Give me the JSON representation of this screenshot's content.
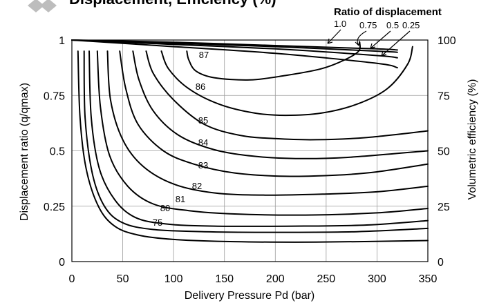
{
  "header_fragment": {
    "text": "Displacement, Efficiency (%)",
    "color": "#bdbdbd"
  },
  "chart_data": {
    "type": "line",
    "xlabel": "Delivery  Pressure Pd (bar)",
    "ylabel_left": "Displacement  ratio (q/qmax)",
    "ylabel_right": "Volumetric efficiency (%)",
    "xlim": [
      0,
      350
    ],
    "ylim_left": [
      0,
      1
    ],
    "ylim_right": [
      0,
      100
    ],
    "x_ticks": [
      "0",
      "50",
      "100",
      "150",
      "200",
      "250",
      "300",
      "350"
    ],
    "x_tick_values": [
      0,
      50,
      100,
      150,
      200,
      250,
      300,
      350
    ],
    "y_left_ticks": [
      "0",
      "0.25",
      "0.5",
      "0.75",
      "1"
    ],
    "y_left_tick_values": [
      0,
      0.25,
      0.5,
      0.75,
      1
    ],
    "y_right_ticks": [
      "0",
      "25",
      "50",
      "75",
      "100"
    ],
    "y_right_tick_values": [
      0,
      25,
      50,
      75,
      100
    ],
    "grid": true,
    "legend": {
      "title": "Ratio of displacement",
      "entries": [
        "1.0",
        "0.75",
        "0.5",
        "0.25"
      ]
    },
    "volumetric_efficiency": [
      {
        "ratio": "1.0",
        "points": [
          [
            0,
            100
          ],
          [
            100,
            99
          ],
          [
            200,
            97.5
          ],
          [
            300,
            96
          ],
          [
            320,
            95.5
          ]
        ]
      },
      {
        "ratio": "0.75",
        "points": [
          [
            0,
            100
          ],
          [
            100,
            98.5
          ],
          [
            200,
            97
          ],
          [
            300,
            95
          ],
          [
            320,
            94.5
          ]
        ]
      },
      {
        "ratio": "0.5",
        "points": [
          [
            0,
            100
          ],
          [
            100,
            98
          ],
          [
            200,
            96
          ],
          [
            300,
            93
          ],
          [
            320,
            92
          ]
        ]
      },
      {
        "ratio": "0.25",
        "points": [
          [
            0,
            100
          ],
          [
            100,
            97
          ],
          [
            200,
            94
          ],
          [
            300,
            89.5
          ],
          [
            320,
            87.5
          ]
        ]
      }
    ],
    "efficiency_contours": [
      {
        "label": "87",
        "points": [
          [
            113,
            95
          ],
          [
            115,
            91
          ],
          [
            122,
            86
          ],
          [
            140,
            83
          ],
          [
            175,
            82
          ],
          [
            210,
            84
          ],
          [
            245,
            87
          ],
          [
            268,
            91
          ],
          [
            282,
            95
          ],
          [
            283,
            99
          ]
        ]
      },
      {
        "label": "86",
        "points": [
          [
            88,
            95
          ],
          [
            95,
            87
          ],
          [
            115,
            78
          ],
          [
            145,
            71
          ],
          [
            180,
            67
          ],
          [
            210,
            66
          ],
          [
            245,
            67
          ],
          [
            280,
            71
          ],
          [
            310,
            78
          ],
          [
            330,
            89
          ],
          [
            335,
            97
          ]
        ]
      },
      {
        "label": "85",
        "points": [
          [
            73,
            95
          ],
          [
            80,
            85
          ],
          [
            100,
            73
          ],
          [
            130,
            62
          ],
          [
            165,
            57
          ],
          [
            200,
            55.5
          ],
          [
            240,
            55
          ],
          [
            290,
            56
          ],
          [
            350,
            59
          ]
        ]
      },
      {
        "label": "84",
        "points": [
          [
            60,
            95
          ],
          [
            66,
            82
          ],
          [
            80,
            68
          ],
          [
            105,
            57
          ],
          [
            140,
            50.5
          ],
          [
            180,
            47.5
          ],
          [
            220,
            46.5
          ],
          [
            270,
            47
          ],
          [
            350,
            50
          ]
        ]
      },
      {
        "label": "83",
        "points": [
          [
            47,
            95
          ],
          [
            53,
            78
          ],
          [
            65,
            62
          ],
          [
            90,
            50
          ],
          [
            120,
            44
          ],
          [
            160,
            40
          ],
          [
            210,
            38.5
          ],
          [
            260,
            39
          ],
          [
            300,
            40.5
          ],
          [
            350,
            44
          ]
        ]
      },
      {
        "label": "82",
        "points": [
          [
            35,
            95
          ],
          [
            38,
            73
          ],
          [
            50,
            55
          ],
          [
            70,
            43
          ],
          [
            100,
            35
          ],
          [
            140,
            31
          ],
          [
            190,
            30
          ],
          [
            250,
            30.5
          ],
          [
            300,
            31.5
          ],
          [
            350,
            34
          ]
        ]
      },
      {
        "label": "81",
        "points": [
          [
            25,
            95
          ],
          [
            28,
            70
          ],
          [
            37,
            48
          ],
          [
            55,
            34
          ],
          [
            80,
            26
          ],
          [
            115,
            23
          ],
          [
            160,
            21.5
          ],
          [
            230,
            21
          ],
          [
            300,
            22
          ],
          [
            350,
            24
          ]
        ]
      },
      {
        "label": "80",
        "points": [
          [
            17,
            95
          ],
          [
            19,
            65
          ],
          [
            27,
            42
          ],
          [
            42,
            28
          ],
          [
            62,
            20
          ],
          [
            92,
            17
          ],
          [
            140,
            16
          ],
          [
            220,
            16
          ],
          [
            290,
            16.5
          ],
          [
            350,
            18.5
          ]
        ]
      },
      {
        "label": "",
        "points": [
          [
            12,
            95
          ],
          [
            13,
            65
          ],
          [
            20,
            40
          ],
          [
            32,
            25
          ],
          [
            50,
            17.5
          ],
          [
            80,
            14.5
          ],
          [
            130,
            13.5
          ],
          [
            200,
            13.2
          ],
          [
            280,
            13.5
          ],
          [
            350,
            15
          ]
        ]
      },
      {
        "label": "75",
        "points": [
          [
            6,
            95
          ],
          [
            8,
            65
          ],
          [
            14,
            42
          ],
          [
            26,
            25
          ],
          [
            42,
            16
          ],
          [
            65,
            12
          ],
          [
            100,
            10
          ],
          [
            160,
            9
          ],
          [
            240,
            8.8
          ],
          [
            350,
            9.5
          ]
        ]
      }
    ]
  }
}
